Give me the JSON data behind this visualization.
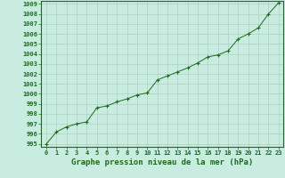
{
  "x": [
    0,
    1,
    2,
    3,
    4,
    5,
    6,
    7,
    8,
    9,
    10,
    11,
    12,
    13,
    14,
    15,
    16,
    17,
    18,
    19,
    20,
    21,
    22,
    23
  ],
  "y": [
    995.0,
    996.2,
    996.7,
    997.0,
    997.2,
    998.6,
    998.8,
    999.2,
    999.5,
    999.9,
    1000.1,
    1001.4,
    1001.8,
    1002.2,
    1002.6,
    1003.1,
    1003.7,
    1003.9,
    1004.3,
    1005.5,
    1006.0,
    1006.6,
    1008.0,
    1009.1
  ],
  "line_color": "#1a6b1a",
  "marker_color": "#1a6b1a",
  "bg_color": "#c8ede0",
  "grid_color": "#a8c8bc",
  "xlabel": "Graphe pression niveau de la mer (hPa)",
  "ylim": [
    995,
    1009
  ],
  "xlim_min": -0.5,
  "xlim_max": 23.5,
  "yticks": [
    995,
    996,
    997,
    998,
    999,
    1000,
    1001,
    1002,
    1003,
    1004,
    1005,
    1006,
    1007,
    1008,
    1009
  ],
  "xticks": [
    0,
    1,
    2,
    3,
    4,
    5,
    6,
    7,
    8,
    9,
    10,
    11,
    12,
    13,
    14,
    15,
    16,
    17,
    18,
    19,
    20,
    21,
    22,
    23
  ],
  "tick_fontsize": 5.0,
  "xlabel_fontsize": 6.5,
  "line_width": 0.7,
  "marker_size": 2.0
}
